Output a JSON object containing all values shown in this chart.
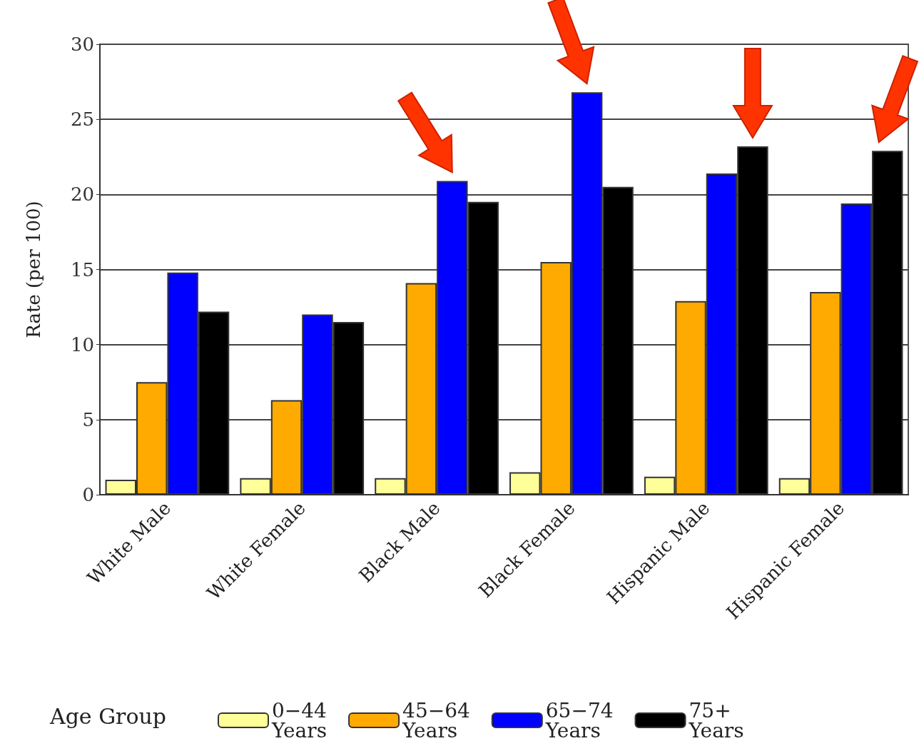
{
  "chart_data": {
    "type": "bar",
    "ylabel": "Rate (per 100)",
    "legend_title": "Age Group",
    "categories": [
      "White Male",
      "White Female",
      "Black Male",
      "Black Female",
      "Hispanic Male",
      "Hispanic Female"
    ],
    "series": [
      {
        "name": "0−44 Years",
        "color": "#ffff99",
        "values": [
          1.0,
          1.1,
          1.1,
          1.5,
          1.2,
          1.1
        ]
      },
      {
        "name": "45−64 Years",
        "color": "#ffaa00",
        "values": [
          7.5,
          6.3,
          14.1,
          15.5,
          12.9,
          13.5
        ]
      },
      {
        "name": "65−74 Years",
        "color": "#0000ff",
        "values": [
          14.8,
          12.0,
          20.9,
          26.8,
          21.4,
          19.4
        ]
      },
      {
        "name": "75+ Years",
        "color": "#000000",
        "values": [
          12.2,
          11.5,
          19.5,
          20.5,
          23.2,
          22.9
        ]
      }
    ],
    "ylim": [
      0,
      30
    ],
    "yticks": [
      0,
      5,
      10,
      15,
      20,
      25,
      30
    ],
    "grid": "y",
    "legend": "bottom"
  }
}
